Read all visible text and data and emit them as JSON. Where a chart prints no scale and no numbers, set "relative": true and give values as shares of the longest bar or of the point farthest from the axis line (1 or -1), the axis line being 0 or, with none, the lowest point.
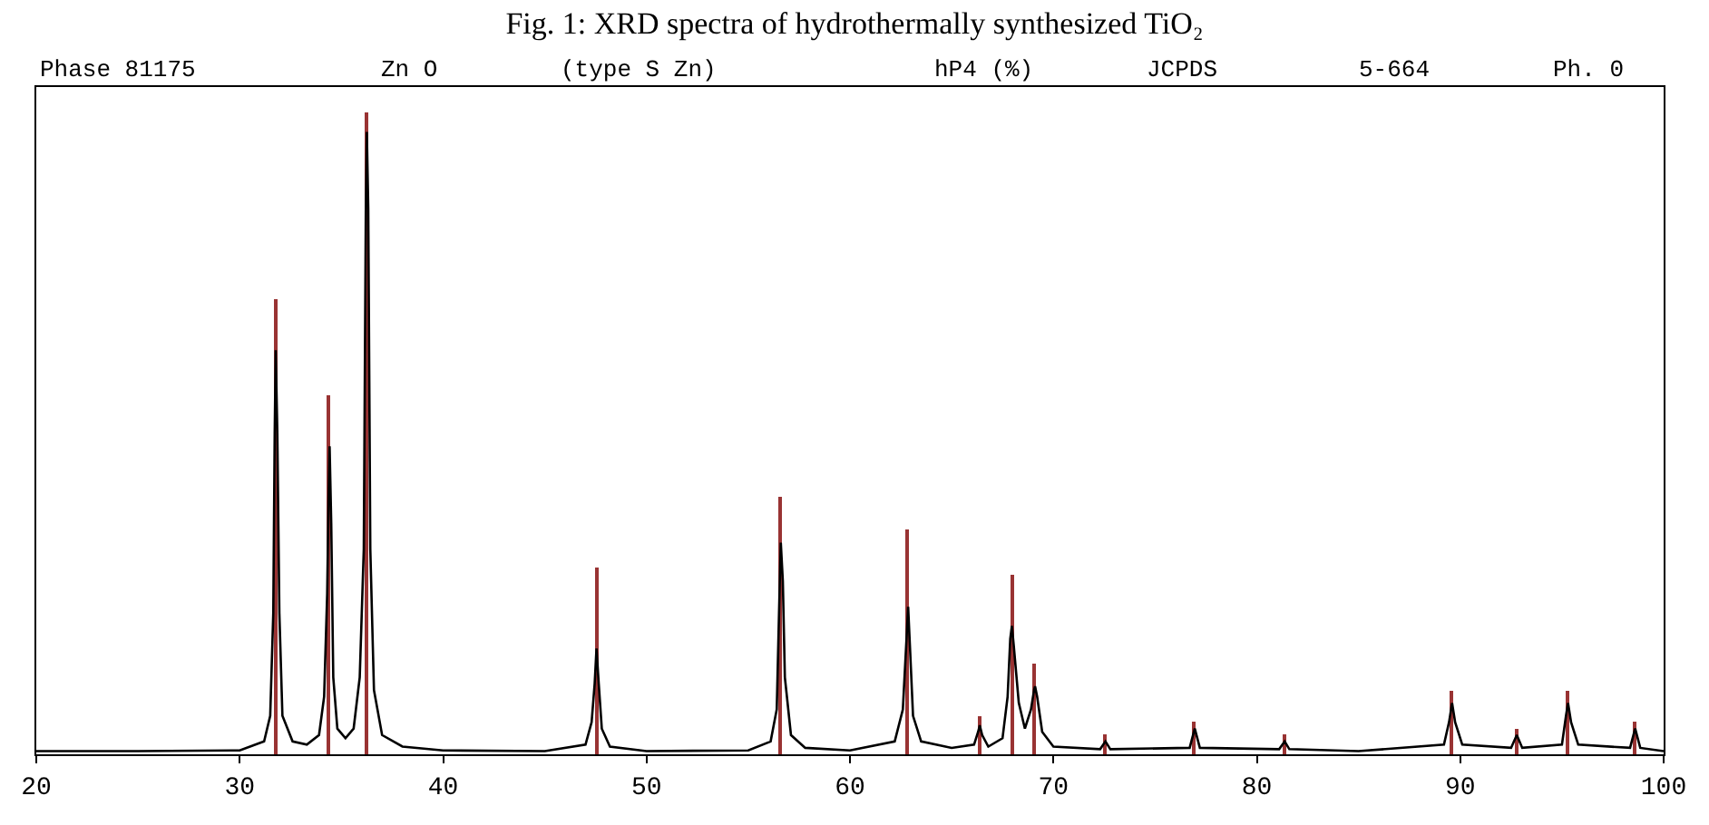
{
  "chart_data": {
    "type": "line",
    "title": "Fig. 1: XRD spectra of hydrothermally synthesized TiO₂",
    "annotations": [
      "Phase 81175",
      "Zn O",
      "(type S Zn)",
      "hP4 (%)",
      "JCPDS",
      "5-664",
      "Ph. 0"
    ],
    "relative": true,
    "xlim": [
      20,
      100
    ],
    "xticks": [
      20,
      30,
      40,
      50,
      60,
      70,
      80,
      90,
      100
    ],
    "grid": false,
    "legend": false,
    "marker": "none",
    "line_style": "solid",
    "series": [
      {
        "color": "#000000",
        "x": [
          20,
          25,
          30,
          31.2,
          31.5,
          31.65,
          31.72,
          31.77,
          31.85,
          31.95,
          32.1,
          32.6,
          33.3,
          33.9,
          34.15,
          34.3,
          34.37,
          34.42,
          34.5,
          34.6,
          34.8,
          35.2,
          35.6,
          35.9,
          36.1,
          36.2,
          36.25,
          36.32,
          36.42,
          36.6,
          37.0,
          38,
          40,
          45,
          47.0,
          47.3,
          47.45,
          47.54,
          47.65,
          47.8,
          48.2,
          50,
          55,
          56.1,
          56.4,
          56.52,
          56.6,
          56.7,
          56.8,
          57.1,
          57.8,
          60,
          62.2,
          62.6,
          62.78,
          62.86,
          62.96,
          63.1,
          63.5,
          65,
          66.1,
          66.3,
          66.38,
          66.5,
          66.8,
          67.5,
          67.75,
          67.88,
          67.96,
          68.05,
          68.3,
          68.6,
          68.9,
          69.05,
          69.1,
          69.2,
          69.45,
          70,
          72.3,
          72.56,
          72.8,
          76.7,
          76.95,
          77.2,
          81.1,
          81.37,
          81.6,
          85,
          89.2,
          89.45,
          89.6,
          89.75,
          90.1,
          92.5,
          92.78,
          93.05,
          95.0,
          95.2,
          95.3,
          95.45,
          95.8,
          98.35,
          98.6,
          98.85,
          100
        ],
        "values": [
          0.005,
          0.005,
          0.006,
          0.02,
          0.06,
          0.22,
          0.5,
          0.63,
          0.5,
          0.22,
          0.06,
          0.02,
          0.015,
          0.03,
          0.09,
          0.25,
          0.4,
          0.48,
          0.36,
          0.12,
          0.04,
          0.025,
          0.04,
          0.12,
          0.32,
          0.85,
          0.97,
          0.85,
          0.32,
          0.1,
          0.03,
          0.012,
          0.006,
          0.005,
          0.015,
          0.05,
          0.11,
          0.165,
          0.11,
          0.04,
          0.012,
          0.005,
          0.006,
          0.02,
          0.07,
          0.23,
          0.33,
          0.27,
          0.12,
          0.03,
          0.01,
          0.006,
          0.02,
          0.07,
          0.18,
          0.23,
          0.16,
          0.06,
          0.02,
          0.01,
          0.015,
          0.035,
          0.045,
          0.03,
          0.012,
          0.025,
          0.09,
          0.18,
          0.2,
          0.17,
          0.08,
          0.04,
          0.07,
          0.1,
          0.106,
          0.09,
          0.035,
          0.012,
          0.008,
          0.02,
          0.008,
          0.01,
          0.04,
          0.01,
          0.008,
          0.02,
          0.008,
          0.005,
          0.015,
          0.05,
          0.08,
          0.05,
          0.015,
          0.01,
          0.03,
          0.01,
          0.015,
          0.06,
          0.08,
          0.05,
          0.015,
          0.01,
          0.04,
          0.01,
          0.005
        ]
      },
      {
        "type": "bar",
        "color": "#993333",
        "x": [
          31.77,
          34.42,
          36.25,
          47.54,
          56.6,
          62.86,
          66.38,
          67.96,
          69.1,
          72.56,
          76.95,
          81.37,
          89.6,
          92.78,
          95.3,
          98.6
        ],
        "values": [
          0.71,
          0.56,
          1.0,
          0.29,
          0.4,
          0.35,
          0.06,
          0.28,
          0.14,
          0.03,
          0.05,
          0.03,
          0.1,
          0.04,
          0.1,
          0.05
        ]
      }
    ]
  }
}
